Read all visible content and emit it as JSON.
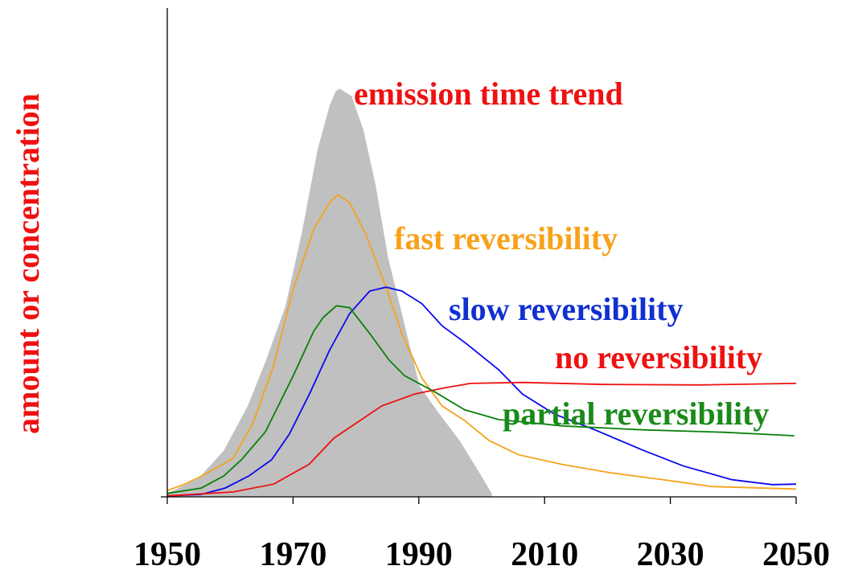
{
  "chart_data": {
    "type": "line",
    "ylabel": "amount or concentration",
    "xlim": [
      1950,
      2050
    ],
    "xticks": [
      1950,
      1970,
      1990,
      2010,
      2030,
      2050
    ],
    "ylim": [
      0,
      100
    ],
    "series": [
      {
        "name": "emission time trend",
        "kind": "area",
        "color": "#c0c0c0",
        "label_color": "#ee1111",
        "x": [
          1950,
          1955,
          1959,
          1962.8,
          1965.6,
          1968.8,
          1971.4,
          1973.9,
          1975.8,
          1976.8,
          1977.4,
          1979.3,
          1981.2,
          1983.1,
          1985.1,
          1987.6,
          1990.1,
          1992.8,
          1996.5,
          1999.6,
          2001.6
        ],
        "values": [
          0.7,
          3.8,
          9.5,
          18.6,
          27.6,
          39,
          54,
          71,
          80,
          83,
          83.5,
          82,
          75,
          64,
          49,
          36,
          22.7,
          17.8,
          11.5,
          5,
          0.7
        ]
      },
      {
        "name": "fast reversibility",
        "color": "#f5a31a",
        "label_color": "#f7a21b",
        "x": [
          1950,
          1952.8,
          1956,
          1960.5,
          1963.7,
          1966.9,
          1970,
          1973.3,
          1975.8,
          1977.1,
          1979,
          1981.6,
          1984.8,
          1987.3,
          1990.5,
          1993.7,
          1997.3,
          2001.2,
          2005.9,
          2012.9,
          2020.6,
          2028.3,
          2036.6,
          2050
        ],
        "values": [
          1.3,
          2.6,
          4.6,
          7.9,
          15.3,
          26.8,
          42.4,
          54.8,
          60.2,
          61.8,
          60.2,
          53.6,
          42.8,
          33.4,
          24.3,
          18.6,
          15.6,
          11.5,
          8.6,
          6.6,
          4.9,
          3.6,
          2.1,
          1.6
        ]
      },
      {
        "name": "slow reversibility",
        "color": "#0a0aee",
        "label_color": "#1030d0",
        "x": [
          1950,
          1955.4,
          1959.2,
          1963,
          1966.6,
          1969.4,
          1972.6,
          1975.8,
          1979,
          1982.2,
          1984.8,
          1987.3,
          1990.5,
          1993.7,
          1997.6,
          2002.7,
          2006.5,
          2011.6,
          2018,
          2025.7,
          2032.1,
          2039.8,
          2046.2,
          2050
        ],
        "values": [
          0.2,
          0.5,
          1.8,
          4.3,
          7.6,
          12.8,
          21,
          30,
          37.5,
          42.1,
          42.9,
          42.1,
          39.5,
          35,
          31.3,
          26,
          21,
          16.9,
          13.7,
          9.5,
          6.3,
          3.5,
          2.5,
          2.6
        ]
      },
      {
        "name": "no reversibility",
        "color": "#ee1111",
        "label_color": "#ee1111",
        "x": [
          1950,
          1960.5,
          1966.9,
          1972.6,
          1976.5,
          1980.3,
          1984.1,
          1989.3,
          1993.7,
          1998.2,
          2006.5,
          2019.3,
          2034.7,
          2050
        ],
        "values": [
          0.2,
          1,
          2.6,
          6.7,
          12,
          15.3,
          18.6,
          21,
          22.2,
          23.2,
          23.4,
          23,
          22.9,
          23.2
        ]
      },
      {
        "name": "partial reversibility",
        "color": "#0a800a",
        "label_color": "#1a8a1a",
        "x": [
          1950,
          1955.4,
          1959,
          1961.8,
          1965.6,
          1970,
          1973.3,
          1974.8,
          1976.9,
          1979,
          1982.2,
          1985.2,
          1987.7,
          1992.5,
          1997.3,
          2002.7,
          2012.9,
          2025.7,
          2038.5,
          2049.7
        ],
        "values": [
          0.7,
          1.8,
          4.3,
          7.6,
          13.3,
          24.7,
          33.9,
          36.7,
          39.1,
          38.7,
          33.4,
          28.1,
          24.8,
          21.5,
          17.8,
          15.8,
          14.5,
          13.7,
          13.2,
          12.5
        ]
      }
    ]
  }
}
